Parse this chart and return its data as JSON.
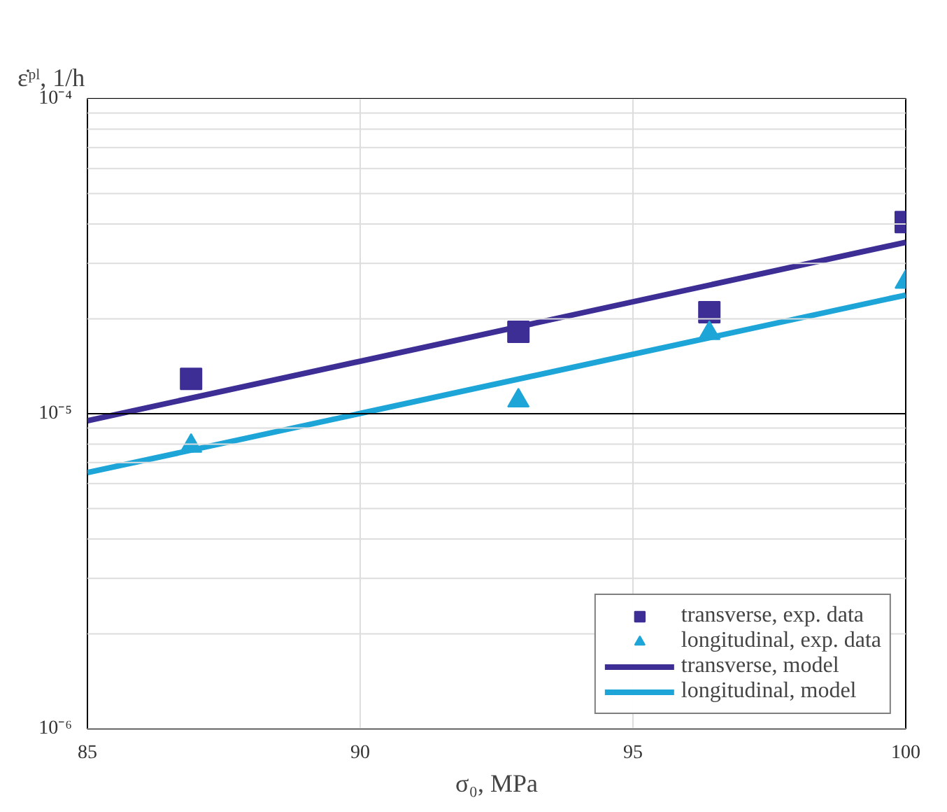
{
  "chart_data": {
    "type": "scatter",
    "xlabel": "σ₀, MPa",
    "ylabel": "ε̇ᵖˡ, 1/h",
    "log": "y",
    "xlim": [
      85,
      100
    ],
    "ylim": [
      1e-06,
      0.0001
    ],
    "xticks": [
      85,
      90,
      95,
      100
    ],
    "yticks": [
      {
        "value": 1e-06,
        "label": "10⁻⁶"
      },
      {
        "value": 2e-06,
        "label": null
      },
      {
        "value": 3e-06,
        "label": null
      },
      {
        "value": 4e-06,
        "label": null
      },
      {
        "value": 5e-06,
        "label": null
      },
      {
        "value": 6e-06,
        "label": null
      },
      {
        "value": 7e-06,
        "label": null
      },
      {
        "value": 8e-06,
        "label": null
      },
      {
        "value": 9e-06,
        "label": null
      },
      {
        "value": 1e-05,
        "label": "10⁻⁵"
      },
      {
        "value": 2e-05,
        "label": null
      },
      {
        "value": 3e-05,
        "label": null
      },
      {
        "value": 4e-05,
        "label": null
      },
      {
        "value": 5e-05,
        "label": null
      },
      {
        "value": 6e-05,
        "label": null
      },
      {
        "value": 7e-05,
        "label": null
      },
      {
        "value": 8e-05,
        "label": null
      },
      {
        "value": 9e-05,
        "label": null
      },
      {
        "value": 0.0001,
        "label": "10⁻⁴"
      }
    ],
    "grid": true,
    "legend": "bottom right",
    "ref_lines": [
      {
        "axis": "y",
        "value": 1e-05,
        "label": null,
        "color": "#000000"
      }
    ],
    "series": [
      {
        "name": "transverse, exp. data",
        "marker": "square",
        "color": "#3d2e96",
        "x": [
          86.9,
          92.9,
          96.4,
          100
        ],
        "values": [
          1.29e-05,
          1.82e-05,
          2.1e-05,
          4.06e-05
        ]
      },
      {
        "name": "longitudinal, exp. data",
        "marker": "triangle",
        "color": "#1ea5d8",
        "x": [
          86.9,
          92.9,
          96.4,
          100
        ],
        "values": [
          7.9e-06,
          1.1e-05,
          1.8e-05,
          2.62e-05
        ]
      },
      {
        "name": "transverse, model",
        "type": "line",
        "color": "#3d2e96",
        "x": [
          85,
          100
        ],
        "values": [
          9.5e-06,
          3.5e-05
        ]
      },
      {
        "name": "longitudinal, model",
        "type": "line",
        "color": "#1ea5d8",
        "x": [
          85,
          100
        ],
        "values": [
          6.5e-06,
          2.38e-05
        ]
      }
    ]
  }
}
